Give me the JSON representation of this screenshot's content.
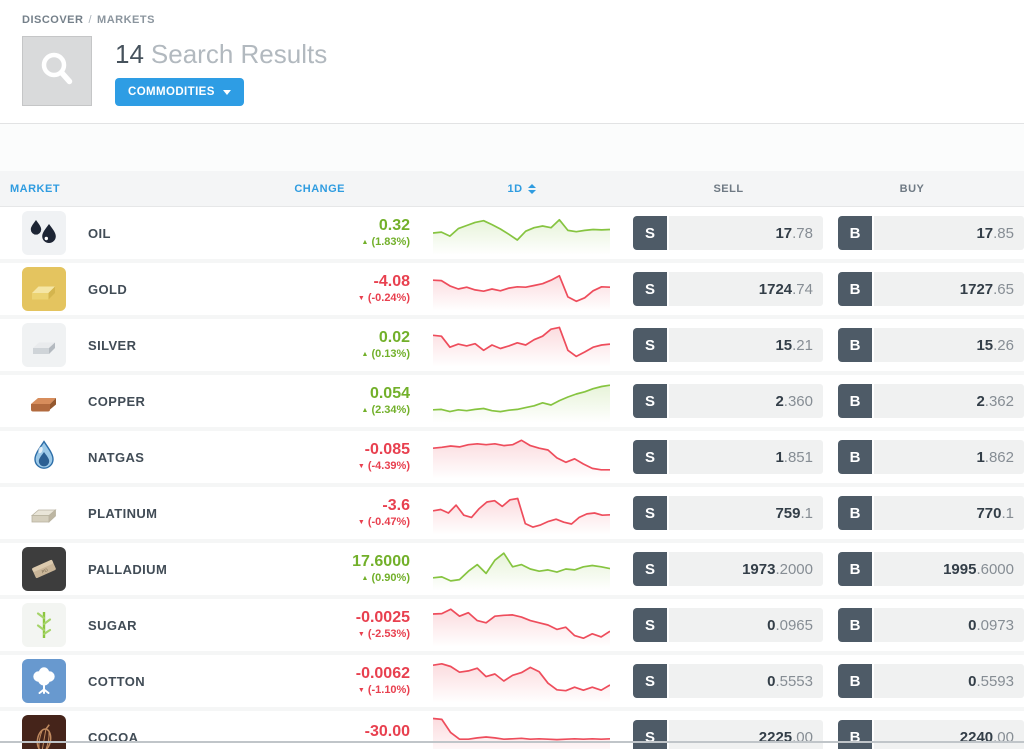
{
  "breadcrumb": {
    "section": "DISCOVER",
    "separator": "/",
    "page": "MARKETS"
  },
  "header": {
    "search_icon": "magnifier-icon",
    "result_count": "14",
    "result_label": "Search Results",
    "filter_button_label": "COMMODITIES"
  },
  "table": {
    "headers": {
      "market": "MARKET",
      "change": "CHANGE",
      "period": "1D",
      "sell": "SELL",
      "buy": "BUY"
    },
    "sell_abbrev": "S",
    "buy_abbrev": "B"
  },
  "colors": {
    "accent_blue": "#2e9de4",
    "positive_green": "#72b02a",
    "negative_red": "#e8404f",
    "spark_green": "#86c440",
    "spark_red": "#ee4d5c",
    "trade_button": "#4e5b67"
  },
  "rows": [
    {
      "name": "OIL",
      "icon": "oil-icon",
      "change": {
        "value": "0.32",
        "pct": "(1.83%)",
        "dir": "up"
      },
      "spark": {
        "color": "green",
        "points": [
          50,
          48,
          57,
          40,
          33,
          26,
          22,
          31,
          41,
          53,
          66,
          46,
          38,
          34,
          38,
          20,
          44,
          47,
          44,
          42,
          43,
          42
        ]
      },
      "sell": {
        "main": "17",
        "pips": ".78"
      },
      "buy": {
        "main": "17",
        "pips": ".85"
      }
    },
    {
      "name": "GOLD",
      "icon": "gold-icon",
      "change": {
        "value": "-4.08",
        "pct": "(-0.24%)",
        "dir": "down"
      },
      "spark": {
        "color": "red",
        "points": [
          30,
          31,
          43,
          50,
          46,
          52,
          55,
          50,
          54,
          48,
          45,
          46,
          42,
          38,
          30,
          20,
          68,
          78,
          70,
          54,
          45,
          46
        ]
      },
      "sell": {
        "main": "1724",
        "pips": ".74"
      },
      "buy": {
        "main": "1727",
        "pips": ".65"
      }
    },
    {
      "name": "SILVER",
      "icon": "silver-icon",
      "change": {
        "value": "0.02",
        "pct": "(0.13%)",
        "dir": "up"
      },
      "spark": {
        "color": "red",
        "points": [
          28,
          30,
          55,
          48,
          52,
          47,
          62,
          50,
          58,
          52,
          45,
          50,
          38,
          30,
          14,
          10,
          62,
          76,
          66,
          55,
          50,
          48
        ]
      },
      "sell": {
        "main": "15",
        "pips": ".21"
      },
      "buy": {
        "main": "15",
        "pips": ".26"
      }
    },
    {
      "name": "COPPER",
      "icon": "copper-icon",
      "change": {
        "value": "0.054",
        "pct": "(2.34%)",
        "dir": "up"
      },
      "spark": {
        "color": "green",
        "points": [
          70,
          69,
          74,
          70,
          72,
          69,
          67,
          72,
          74,
          71,
          69,
          65,
          61,
          54,
          59,
          49,
          41,
          34,
          29,
          22,
          17,
          14
        ]
      },
      "sell": {
        "main": "2",
        "pips": ".360"
      },
      "buy": {
        "main": "2",
        "pips": ".362"
      }
    },
    {
      "name": "NATGAS",
      "icon": "natgas-icon",
      "change": {
        "value": "-0.085",
        "pct": "(-4.39%)",
        "dir": "down"
      },
      "spark": {
        "color": "red",
        "points": [
          30,
          28,
          25,
          27,
          22,
          20,
          22,
          20,
          24,
          22,
          12,
          24,
          30,
          34,
          52,
          62,
          54,
          66,
          76,
          79,
          79
        ]
      },
      "sell": {
        "main": "1",
        "pips": ".851"
      },
      "buy": {
        "main": "1",
        "pips": ".862"
      }
    },
    {
      "name": "PLATINUM",
      "icon": "platinum-icon",
      "change": {
        "value": "-3.6",
        "pct": "(-0.47%)",
        "dir": "down"
      },
      "spark": {
        "color": "red",
        "points": [
          45,
          42,
          50,
          32,
          55,
          60,
          40,
          25,
          22,
          35,
          20,
          17,
          74,
          82,
          77,
          69,
          64,
          71,
          75,
          60,
          52,
          50,
          55,
          54
        ]
      },
      "sell": {
        "main": "759",
        "pips": ".1"
      },
      "buy": {
        "main": "770",
        "pips": ".1"
      }
    },
    {
      "name": "PALLADIUM",
      "icon": "palladium-icon",
      "change": {
        "value": "17.6000",
        "pct": "(0.90%)",
        "dir": "up"
      },
      "spark": {
        "color": "green",
        "points": [
          70,
          68,
          77,
          74,
          55,
          40,
          60,
          30,
          14,
          45,
          40,
          50,
          55,
          52,
          57,
          50,
          52,
          45,
          42,
          45,
          49
        ]
      },
      "sell": {
        "main": "1973",
        "pips": ".2000"
      },
      "buy": {
        "main": "1995",
        "pips": ".6000"
      }
    },
    {
      "name": "SUGAR",
      "icon": "sugar-icon",
      "change": {
        "value": "-0.0025",
        "pct": "(-2.53%)",
        "dir": "down"
      },
      "spark": {
        "color": "red",
        "points": [
          25,
          24,
          14,
          30,
          22,
          40,
          45,
          30,
          28,
          27,
          32,
          40,
          45,
          50,
          60,
          55,
          74,
          80,
          70,
          77,
          64
        ]
      },
      "sell": {
        "main": "0",
        "pips": ".0965"
      },
      "buy": {
        "main": "0",
        "pips": ".0973"
      }
    },
    {
      "name": "COTTON",
      "icon": "cotton-icon",
      "change": {
        "value": "-0.0062",
        "pct": "(-1.10%)",
        "dir": "down"
      },
      "spark": {
        "color": "red",
        "points": [
          14,
          11,
          17,
          30,
          27,
          21,
          40,
          34,
          50,
          37,
          31,
          19,
          29,
          55,
          70,
          72,
          64,
          71,
          64,
          71,
          59
        ]
      },
      "sell": {
        "main": "0",
        "pips": ".5553"
      },
      "buy": {
        "main": "0",
        "pips": ".5593"
      }
    },
    {
      "name": "COCOA",
      "icon": "cocoa-icon",
      "change": {
        "value": "-30.00",
        "pct": null,
        "dir": "down"
      },
      "spark": {
        "color": "red",
        "points": [
          8,
          10,
          40,
          55,
          55,
          52,
          50,
          52,
          55,
          54,
          53,
          55,
          54,
          55,
          56,
          55,
          54,
          55,
          54,
          55,
          54
        ]
      },
      "sell": {
        "main": "2225",
        "pips": ".00"
      },
      "buy": {
        "main": "2240",
        "pips": ".00"
      }
    }
  ]
}
